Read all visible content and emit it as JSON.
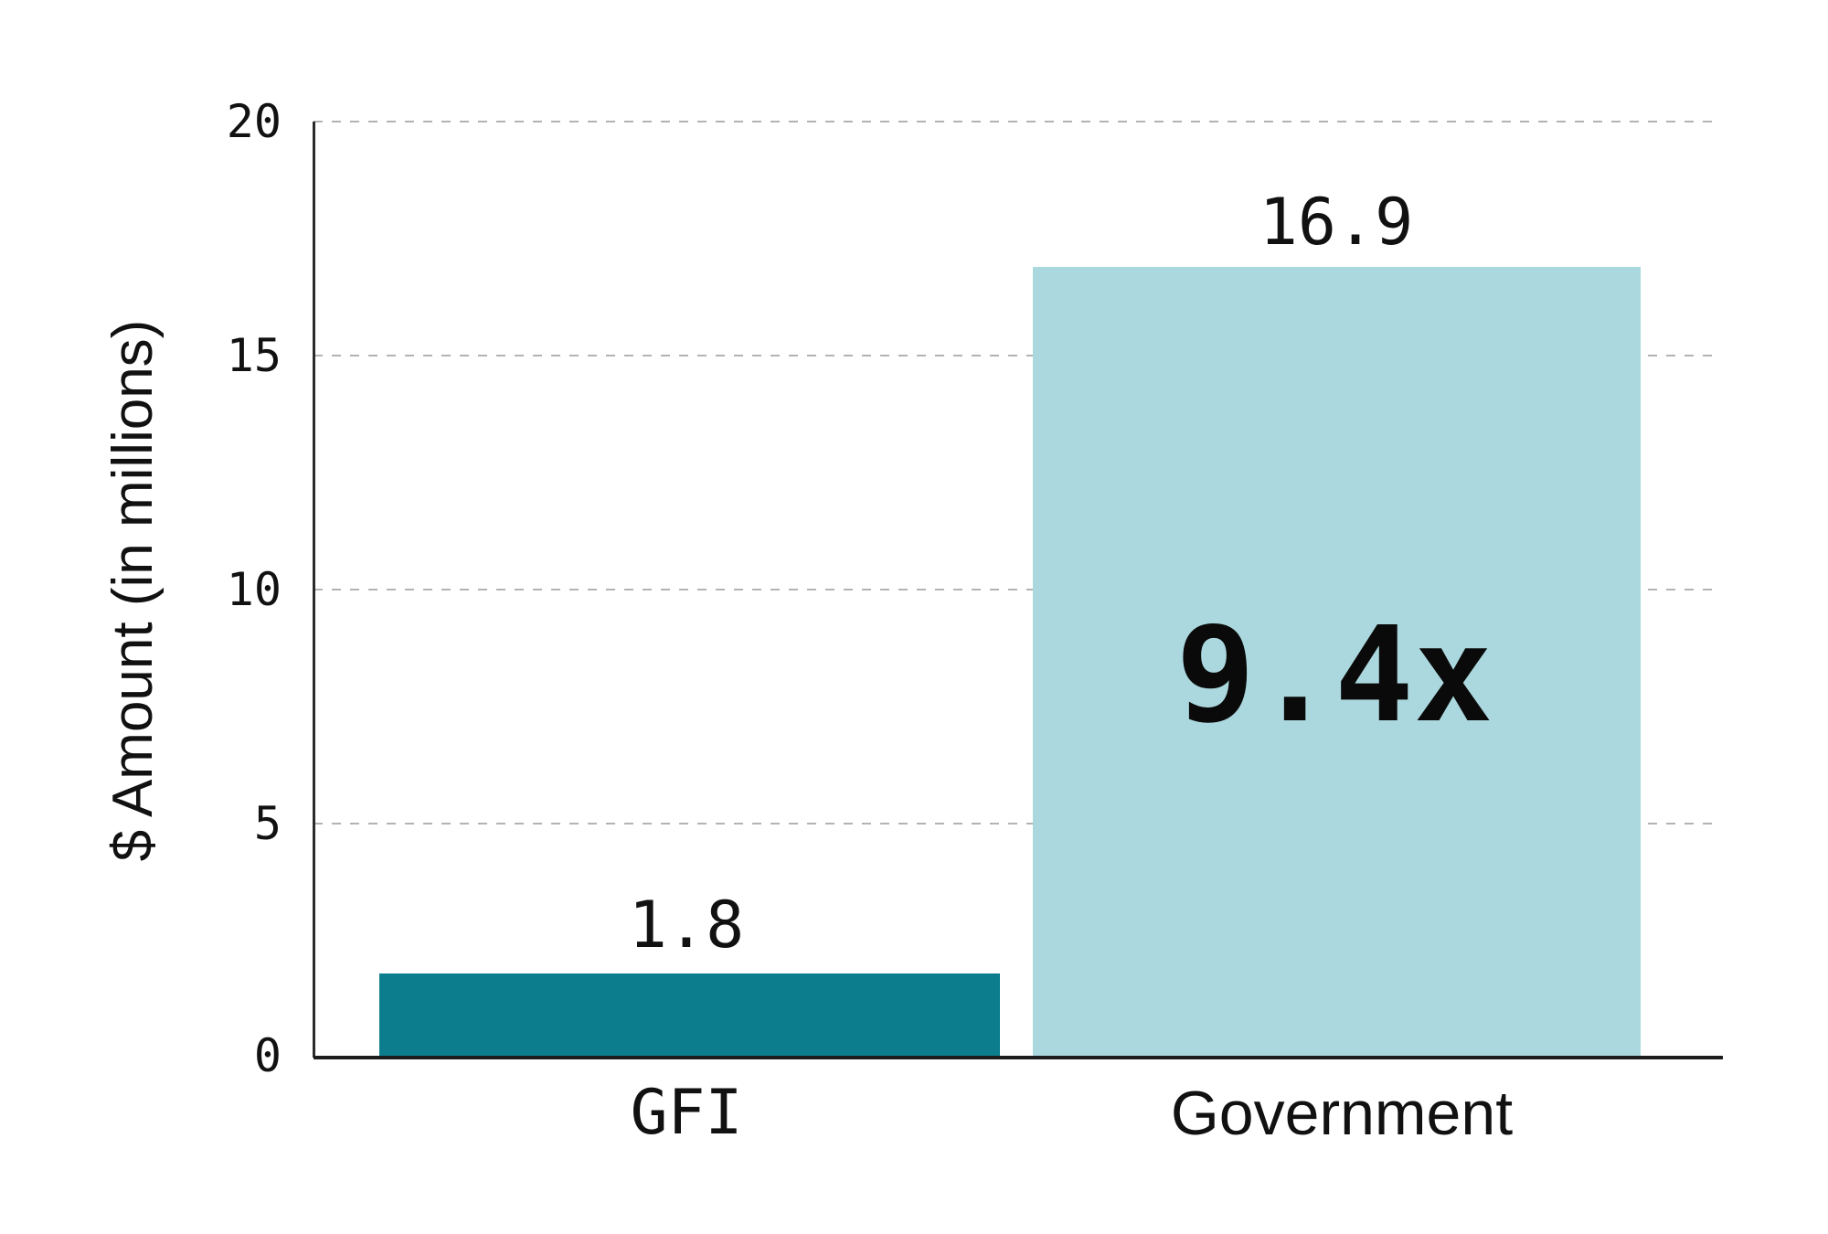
{
  "chart_data": {
    "type": "bar",
    "categories": [
      "GFI",
      "Government"
    ],
    "values": [
      1.8,
      16.9
    ],
    "value_labels": [
      "1.8",
      "16.9"
    ],
    "annotation": "9.4x",
    "annotation_target": "Government",
    "title": "",
    "xlabel": "",
    "ylabel": "$ Amount (in millions)",
    "ylim": [
      0,
      20
    ],
    "yticks": [
      0,
      5,
      10,
      15,
      20
    ],
    "ytick_labels_top_to_bottom": [
      "20",
      "15",
      "10",
      "5",
      "0"
    ],
    "grid": "horizontal-dashed",
    "legend": "none",
    "bar_colors": [
      "#0b7d8c",
      "#abd8de"
    ]
  },
  "colors": {
    "gfi_bar": "#0b7d8c",
    "government_bar": "#abd8de",
    "grid_line": "#b3b3b3",
    "y_axis_line": "#2b2b2b",
    "x_axis_line": "#1c1c1c",
    "text": "#111111",
    "background": "#ffffff"
  }
}
